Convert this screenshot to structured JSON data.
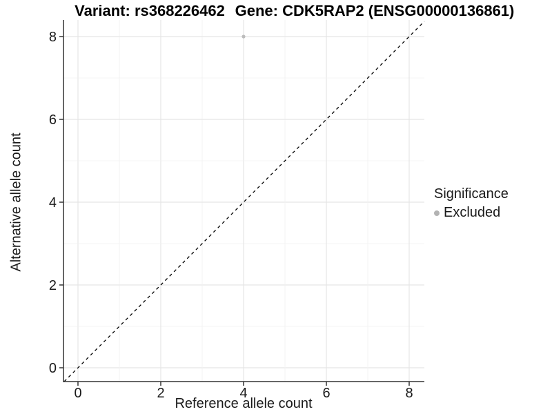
{
  "header": {
    "title_left": "Variant: rs368226462",
    "title_right": "Gene: CDK5RAP2 (ENSG00000136861)"
  },
  "chart_data": {
    "type": "scatter",
    "xlabel": "Reference allele count",
    "ylabel": "Alternative allele count",
    "xlim": [
      -0.4,
      8.4
    ],
    "ylim": [
      -0.4,
      8.4
    ],
    "x_ticks": [
      0,
      2,
      4,
      6,
      8
    ],
    "y_ticks": [
      0,
      2,
      4,
      6,
      8
    ],
    "grid": "major gridlines at even counts, minor at odd counts, light gray on white",
    "points": [
      {
        "x": 4,
        "y": 8,
        "significance": "Excluded"
      }
    ],
    "reference_line": {
      "kind": "identity y=x",
      "style": "dashed",
      "color": "#000000"
    },
    "legend": {
      "title": "Significance",
      "position": "right",
      "entries": [
        {
          "label": "Excluded",
          "color": "#b3b3b3"
        }
      ]
    }
  },
  "colors": {
    "background": "#ffffff",
    "grid_major": "#e5e5e5",
    "grid_minor": "#f0f0f0",
    "axis_line": "#333333",
    "tick_label": "#1a1a1a",
    "point": "#bcbcbc"
  }
}
